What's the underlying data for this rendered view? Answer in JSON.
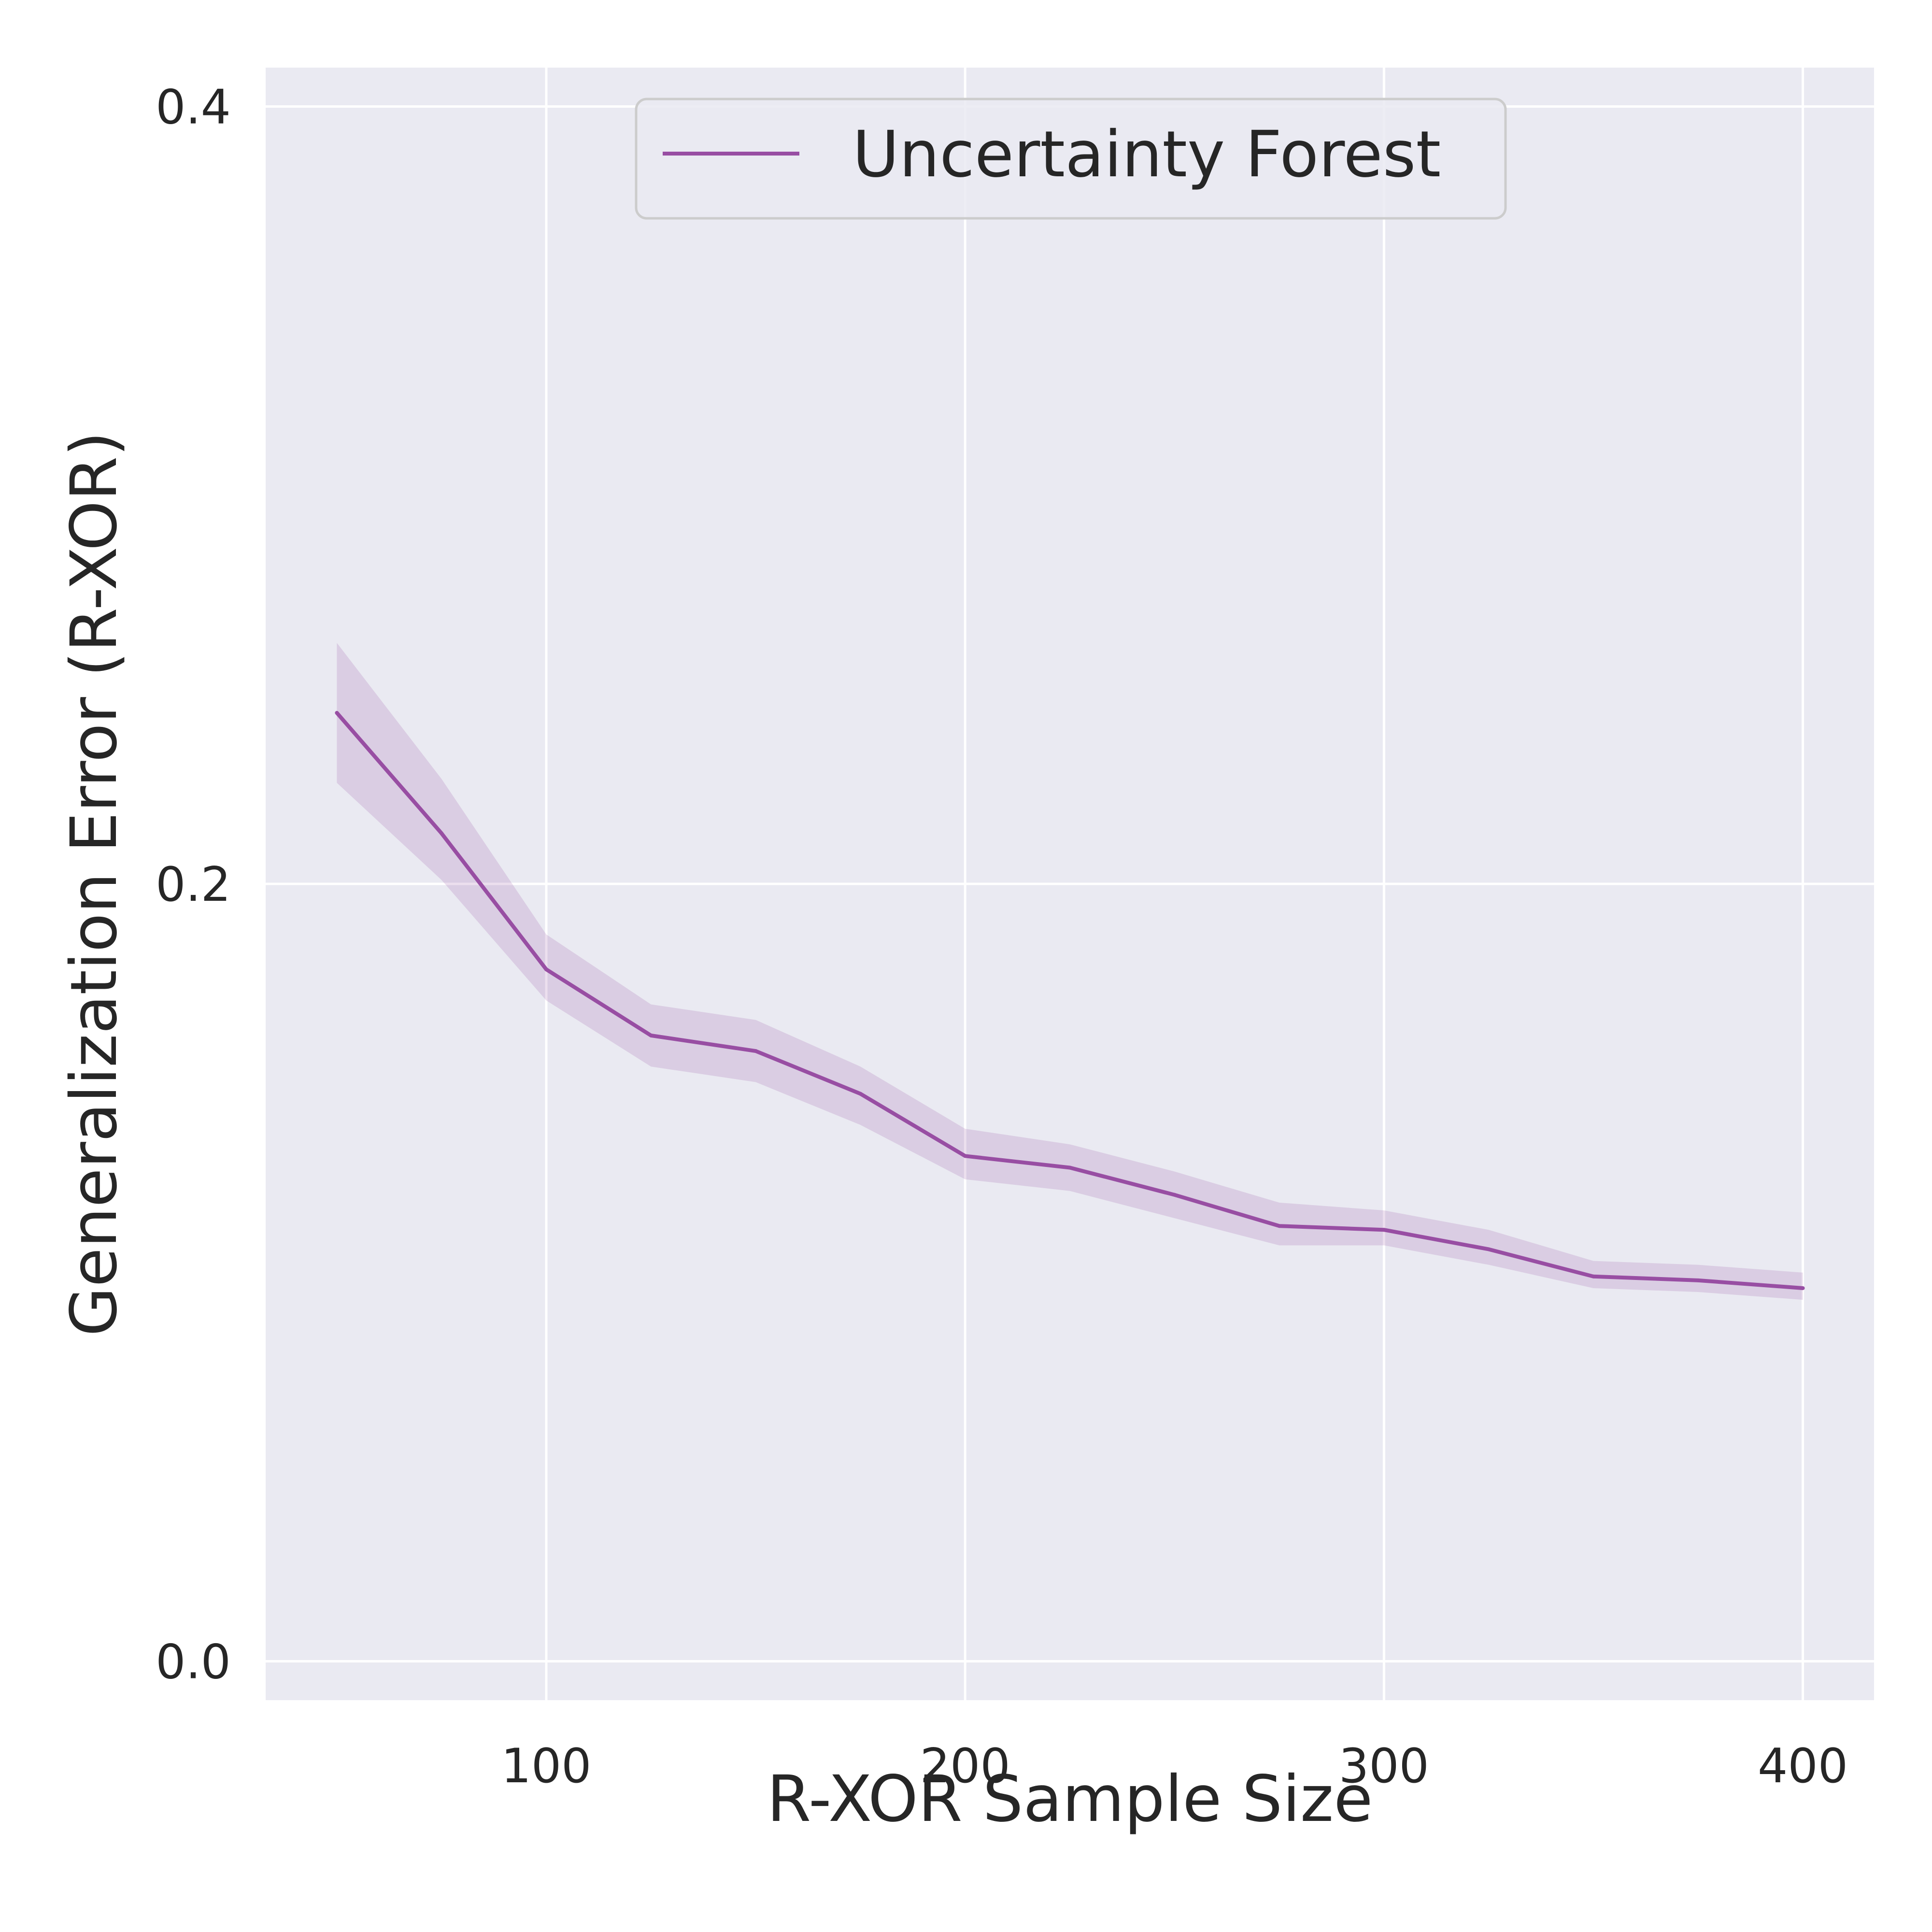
{
  "chart_data": {
    "type": "line",
    "title": "",
    "xlabel": "R-XOR Sample Size",
    "ylabel": "Generalization Error (R-XOR)",
    "xlim": [
      33,
      417
    ],
    "ylim": [
      -0.01,
      0.41
    ],
    "xticks": [
      100,
      200,
      300,
      400
    ],
    "xtick_labels": [
      "100",
      "200",
      "300",
      "400"
    ],
    "yticks": [
      0.0,
      0.2,
      0.4
    ],
    "ytick_labels": [
      "0.0",
      "0.2",
      "0.4"
    ],
    "grid": true,
    "legend_position": "upper center",
    "x": [
      50,
      75,
      100,
      125,
      150,
      175,
      200,
      225,
      250,
      275,
      300,
      325,
      350,
      375,
      400
    ],
    "series": [
      {
        "name": "Uncertainty Forest",
        "color": "#984ea3",
        "values": [
          0.244,
          0.213,
          0.178,
          0.161,
          0.157,
          0.146,
          0.13,
          0.127,
          0.12,
          0.112,
          0.111,
          0.106,
          0.099,
          0.098,
          0.096
        ],
        "lower": [
          0.226,
          0.201,
          0.17,
          0.153,
          0.149,
          0.138,
          0.124,
          0.121,
          0.114,
          0.107,
          0.107,
          0.102,
          0.096,
          0.095,
          0.093
        ],
        "upper": [
          0.262,
          0.227,
          0.187,
          0.169,
          0.165,
          0.153,
          0.137,
          0.133,
          0.126,
          0.118,
          0.116,
          0.111,
          0.103,
          0.102,
          0.1
        ]
      }
    ]
  }
}
